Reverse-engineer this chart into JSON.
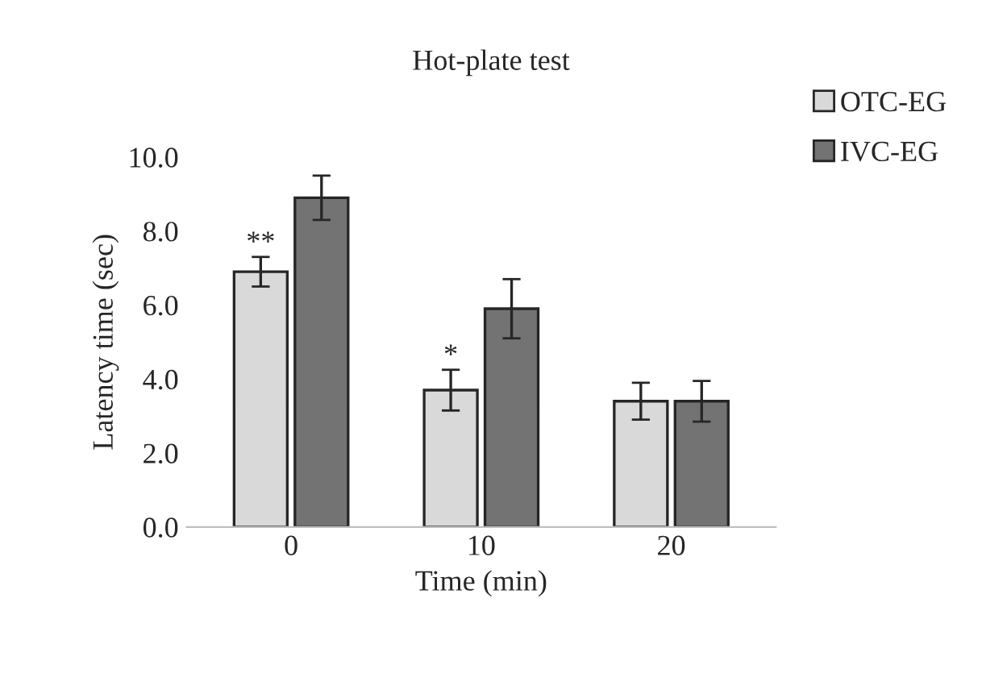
{
  "chart_data": {
    "type": "bar",
    "title": "Hot-plate test",
    "xlabel": "Time (min)",
    "ylabel": "Latency time (sec)",
    "categories": [
      "0",
      "10",
      "20"
    ],
    "series": [
      {
        "name": "OTC-EG",
        "color": "#d9d9d9",
        "values": [
          6.9,
          3.7,
          3.4
        ],
        "errors": [
          0.4,
          0.55,
          0.5
        ]
      },
      {
        "name": "IVC-EG",
        "color": "#737373",
        "values": [
          8.9,
          5.9,
          3.4
        ],
        "errors": [
          0.6,
          0.8,
          0.55
        ]
      }
    ],
    "ylim": [
      0,
      10
    ],
    "yticks": [
      {
        "value": 0,
        "label": "0.0"
      },
      {
        "value": 2,
        "label": "2.0"
      },
      {
        "value": 4,
        "label": "4.0"
      },
      {
        "value": 6,
        "label": "6.0"
      },
      {
        "value": 8,
        "label": "8.0"
      },
      {
        "value": 10,
        "label": "10.0"
      }
    ],
    "annotations": [
      {
        "text": "**",
        "x": "0",
        "y": 7.3
      },
      {
        "text": "*",
        "x": "10",
        "y": 4.25
      }
    ],
    "legend": "right",
    "grid": false
  }
}
